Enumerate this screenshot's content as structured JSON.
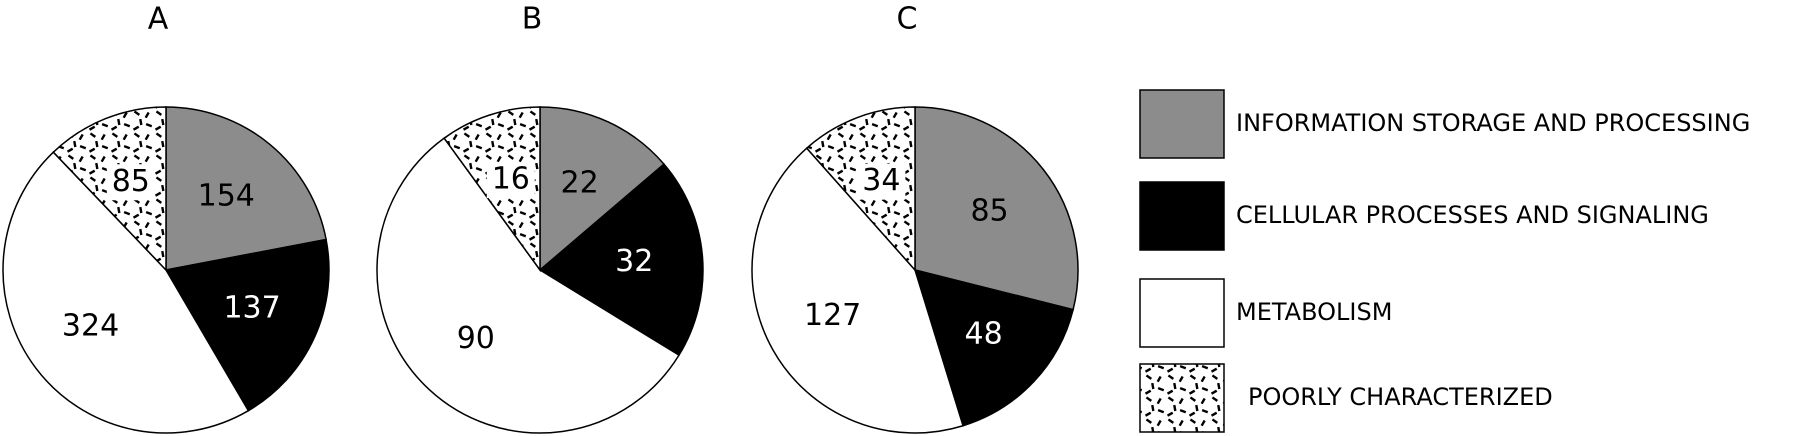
{
  "chart_data": [
    {
      "type": "pie",
      "title": "A",
      "categories": [
        "INFORMATION STORAGE AND PROCESSING",
        "CELLULAR PROCESSES AND SIGNALING",
        "METABOLISM",
        "POORLY CHARACTERIZED"
      ],
      "values": [
        154,
        137,
        324,
        85
      ],
      "colors": [
        "#8c8c8c",
        "#000000",
        "#ffffff",
        "#ffffff"
      ],
      "patterns": [
        null,
        null,
        null,
        "speckle"
      ]
    },
    {
      "type": "pie",
      "title": "B",
      "categories": [
        "INFORMATION STORAGE AND PROCESSING",
        "CELLULAR PROCESSES AND SIGNALING",
        "METABOLISM",
        "POORLY CHARACTERIZED"
      ],
      "values": [
        22,
        32,
        90,
        16
      ],
      "colors": [
        "#8c8c8c",
        "#000000",
        "#ffffff",
        "#ffffff"
      ],
      "patterns": [
        null,
        null,
        null,
        "speckle"
      ]
    },
    {
      "type": "pie",
      "title": "C",
      "categories": [
        "INFORMATION STORAGE AND PROCESSING",
        "CELLULAR PROCESSES AND SIGNALING",
        "METABOLISM",
        "POORLY CHARACTERIZED"
      ],
      "values": [
        85,
        48,
        127,
        34
      ],
      "colors": [
        "#8c8c8c",
        "#000000",
        "#ffffff",
        "#ffffff"
      ],
      "patterns": [
        null,
        null,
        null,
        "speckle"
      ]
    }
  ]
}
